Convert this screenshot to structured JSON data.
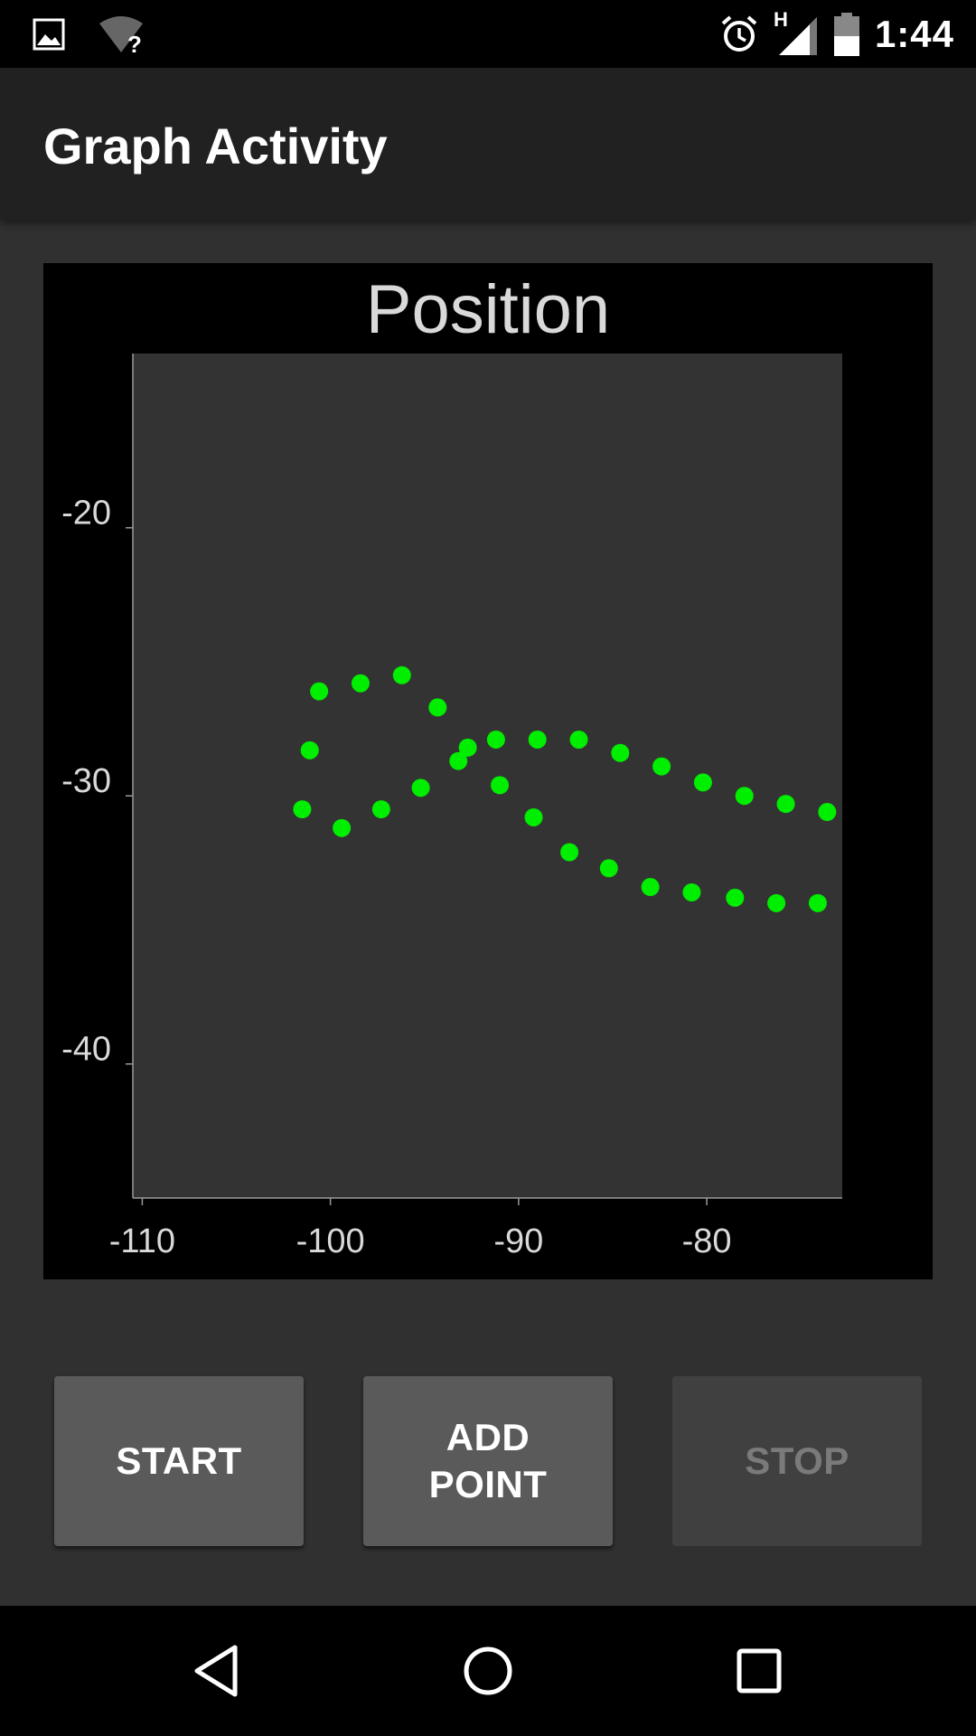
{
  "status_bar": {
    "time": "1:44",
    "network_label": "H",
    "icons": [
      "image-icon",
      "wifi-unknown-icon",
      "alarm-icon",
      "signal-icon",
      "battery-icon"
    ]
  },
  "app_bar": {
    "title": "Graph Activity"
  },
  "chart_data": {
    "type": "scatter",
    "title": "Position",
    "xlabel": "",
    "ylabel": "",
    "xlim": [
      -110.5,
      -72.8
    ],
    "ylim": [
      -45,
      -13.5
    ],
    "x_ticks": [
      -110,
      -100,
      -90,
      -80
    ],
    "y_ticks": [
      -20,
      -30,
      -40
    ],
    "x_tick_labels": [
      "-110",
      "-100",
      "-90",
      "-80"
    ],
    "y_tick_labels": [
      "-20",
      "-30",
      "-40"
    ],
    "grid": false,
    "marker_color": "#00ee00",
    "plot_background": "#333333",
    "series": [
      {
        "points": [
          [
            -101.5,
            -30.5
          ],
          [
            -99.4,
            -31.2
          ],
          [
            -97.3,
            -30.5
          ],
          [
            -95.2,
            -29.7
          ],
          [
            -93.2,
            -28.7
          ],
          [
            -91.2,
            -27.9
          ],
          [
            -89.0,
            -27.9
          ],
          [
            -86.8,
            -27.9
          ],
          [
            -84.6,
            -28.4
          ],
          [
            -82.4,
            -28.9
          ],
          [
            -80.2,
            -29.5
          ],
          [
            -78.0,
            -30.0
          ],
          [
            -75.8,
            -30.3
          ],
          [
            -73.6,
            -30.6
          ]
        ]
      },
      {
        "points": [
          [
            -101.1,
            -28.3
          ],
          [
            -100.6,
            -26.1
          ],
          [
            -98.4,
            -25.8
          ],
          [
            -96.2,
            -25.5
          ],
          [
            -94.3,
            -26.7
          ],
          [
            -92.7,
            -28.2
          ],
          [
            -91.0,
            -29.6
          ],
          [
            -89.2,
            -30.8
          ],
          [
            -87.3,
            -32.1
          ],
          [
            -85.2,
            -32.7
          ],
          [
            -83.0,
            -33.4
          ],
          [
            -80.8,
            -33.6
          ],
          [
            -78.5,
            -33.8
          ],
          [
            -76.3,
            -34.0
          ],
          [
            -74.1,
            -34.0
          ]
        ]
      }
    ]
  },
  "buttons": {
    "start": "START",
    "add_point_line1": "ADD",
    "add_point_line2": "POINT",
    "stop": "STOP"
  },
  "nav_bar": {
    "icons": [
      "back-icon",
      "home-icon",
      "recents-icon"
    ]
  }
}
